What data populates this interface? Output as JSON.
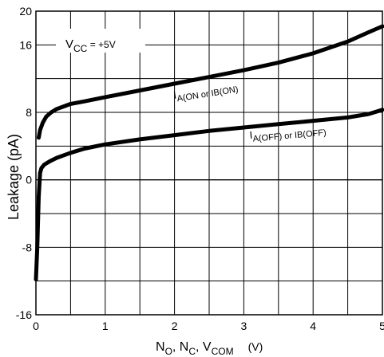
{
  "chart_data": {
    "type": "line",
    "ylabel": "Leakage  (pA)",
    "xlabel": {
      "parts": [
        {
          "t": "N",
          "sub": "O"
        },
        {
          "t": ", N",
          "sub": "C"
        },
        {
          "t": ", V",
          "sub": "COM"
        }
      ],
      "unit": "(V)"
    },
    "xlim": [
      0,
      5
    ],
    "ylim": [
      -16,
      20
    ],
    "x_ticks": [
      0,
      1,
      2,
      3,
      4,
      5
    ],
    "y_ticks": [
      -16,
      -8,
      0,
      8,
      16,
      20
    ],
    "x_minor_step": 0.5,
    "y_minor_step": 4,
    "grid": true,
    "condition": {
      "main": "V",
      "sub": "CC",
      "suffix": " = +5V"
    },
    "series": [
      {
        "name": "I",
        "sub": "A(ON or IB(ON)",
        "x": [
          0.04,
          0.06,
          0.1,
          0.15,
          0.22,
          0.3,
          0.4,
          0.5,
          0.7,
          1.0,
          1.5,
          2.0,
          2.5,
          3.0,
          3.5,
          4.0,
          4.5,
          4.8,
          5.0
        ],
        "y": [
          5.0,
          5.9,
          6.8,
          7.5,
          8.0,
          8.4,
          8.7,
          9.0,
          9.3,
          9.8,
          10.6,
          11.4,
          12.2,
          13.0,
          13.9,
          15.0,
          16.4,
          17.5,
          18.2
        ]
      },
      {
        "name": "I",
        "sub": "A(OFF) or IB(OFF)",
        "x": [
          0.0,
          0.02,
          0.04,
          0.06,
          0.08,
          0.12,
          0.2,
          0.3,
          0.5,
          0.7,
          1.0,
          1.5,
          2.0,
          2.5,
          3.0,
          3.5,
          4.0,
          4.5,
          4.8,
          5.0
        ],
        "y": [
          -11.8,
          -8.0,
          -2.0,
          0.8,
          1.4,
          1.8,
          2.2,
          2.6,
          3.2,
          3.7,
          4.2,
          4.8,
          5.3,
          5.8,
          6.2,
          6.6,
          7.0,
          7.4,
          7.8,
          8.3
        ]
      }
    ]
  }
}
